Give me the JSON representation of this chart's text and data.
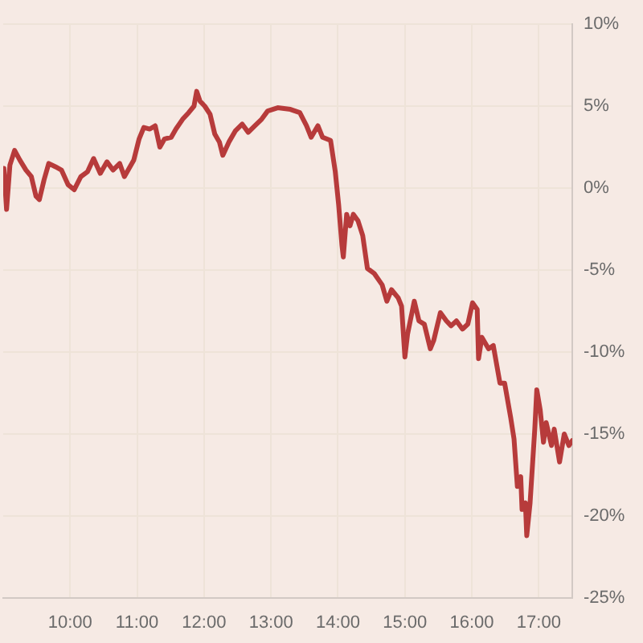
{
  "chart_data": {
    "type": "line",
    "x": [
      9.01,
      9.05,
      9.1,
      9.17,
      9.25,
      9.34,
      9.42,
      9.49,
      9.54,
      9.61,
      9.68,
      9.78,
      9.87,
      9.97,
      10.06,
      10.16,
      10.26,
      10.35,
      10.45,
      10.55,
      10.64,
      10.74,
      10.81,
      10.88,
      10.95,
      11.03,
      11.1,
      11.19,
      11.27,
      11.34,
      11.41,
      11.51,
      11.58,
      11.68,
      11.77,
      11.85,
      11.89,
      11.94,
      12.01,
      12.09,
      12.16,
      12.23,
      12.28,
      12.37,
      12.47,
      12.57,
      12.66,
      12.76,
      12.86,
      12.95,
      13.1,
      13.29,
      13.43,
      13.53,
      13.6,
      13.7,
      13.77,
      13.89,
      13.96,
      14.01,
      14.06,
      14.08,
      14.13,
      14.18,
      14.23,
      14.3,
      14.37,
      14.44,
      14.54,
      14.66,
      14.73,
      14.8,
      14.9,
      14.95,
      15.0,
      15.04,
      15.14,
      15.21,
      15.29,
      15.38,
      15.43,
      15.53,
      15.62,
      15.69,
      15.77,
      15.86,
      15.94,
      16.01,
      16.08,
      16.1,
      16.15,
      16.25,
      16.32,
      16.42,
      16.49,
      16.58,
      16.63,
      16.68,
      16.73,
      16.75,
      16.8,
      16.82,
      16.87,
      16.94,
      16.97,
      17.02,
      17.07,
      17.11,
      17.19,
      17.23,
      17.31,
      17.38,
      17.45,
      17.5
    ],
    "series": [
      {
        "color": "#b73b3b",
        "values": [
          1.2,
          -1.3,
          1.4,
          2.3,
          1.7,
          1.1,
          0.7,
          -0.5,
          -0.7,
          0.5,
          1.5,
          1.3,
          1.1,
          0.2,
          -0.1,
          0.7,
          1.0,
          1.8,
          0.9,
          1.6,
          1.1,
          1.5,
          0.7,
          1.2,
          1.7,
          3.0,
          3.7,
          3.6,
          3.8,
          2.5,
          3.0,
          3.1,
          3.6,
          4.2,
          4.6,
          5.0,
          5.9,
          5.3,
          5.0,
          4.5,
          3.3,
          2.8,
          2.0,
          2.8,
          3.5,
          3.9,
          3.4,
          3.8,
          4.2,
          4.7,
          4.9,
          4.8,
          4.6,
          3.8,
          3.1,
          3.8,
          3.1,
          2.9,
          1.0,
          -1.0,
          -3.5,
          -4.2,
          -1.6,
          -2.3,
          -1.6,
          -2.0,
          -2.9,
          -4.9,
          -5.2,
          -5.9,
          -6.9,
          -6.2,
          -6.7,
          -7.2,
          -10.3,
          -8.9,
          -6.9,
          -8.1,
          -8.3,
          -9.8,
          -9.3,
          -7.6,
          -8.1,
          -8.4,
          -8.1,
          -8.6,
          -8.3,
          -7.0,
          -7.4,
          -10.4,
          -9.1,
          -9.8,
          -9.6,
          -11.9,
          -11.9,
          -14.0,
          -15.3,
          -18.2,
          -17.6,
          -19.6,
          -19.2,
          -21.2,
          -19.2,
          -14.7,
          -12.3,
          -13.5,
          -15.5,
          -14.3,
          -15.7,
          -14.7,
          -16.7,
          -15.0,
          -15.7,
          -15.4
        ]
      }
    ],
    "xlim": [
      9,
      17.5
    ],
    "xticks": [
      {
        "value": 10,
        "label": "10:00"
      },
      {
        "value": 11,
        "label": "11:00"
      },
      {
        "value": 12,
        "label": "12:00"
      },
      {
        "value": 13,
        "label": "13:00"
      },
      {
        "value": 14,
        "label": "14:00"
      },
      {
        "value": 15,
        "label": "15:00"
      },
      {
        "value": 16,
        "label": "16:00"
      },
      {
        "value": 17,
        "label": "17:00"
      }
    ],
    "ylim": [
      -25,
      10
    ],
    "yticks": [
      {
        "value": 10,
        "label": "10%"
      },
      {
        "value": 5,
        "label": "5%"
      },
      {
        "value": 0,
        "label": "0%"
      },
      {
        "value": -5,
        "label": "-5%"
      },
      {
        "value": -10,
        "label": "-10%"
      },
      {
        "value": -15,
        "label": "-15%"
      },
      {
        "value": -20,
        "label": "-20%"
      },
      {
        "value": -25,
        "label": "-25%"
      }
    ],
    "grid": true
  }
}
